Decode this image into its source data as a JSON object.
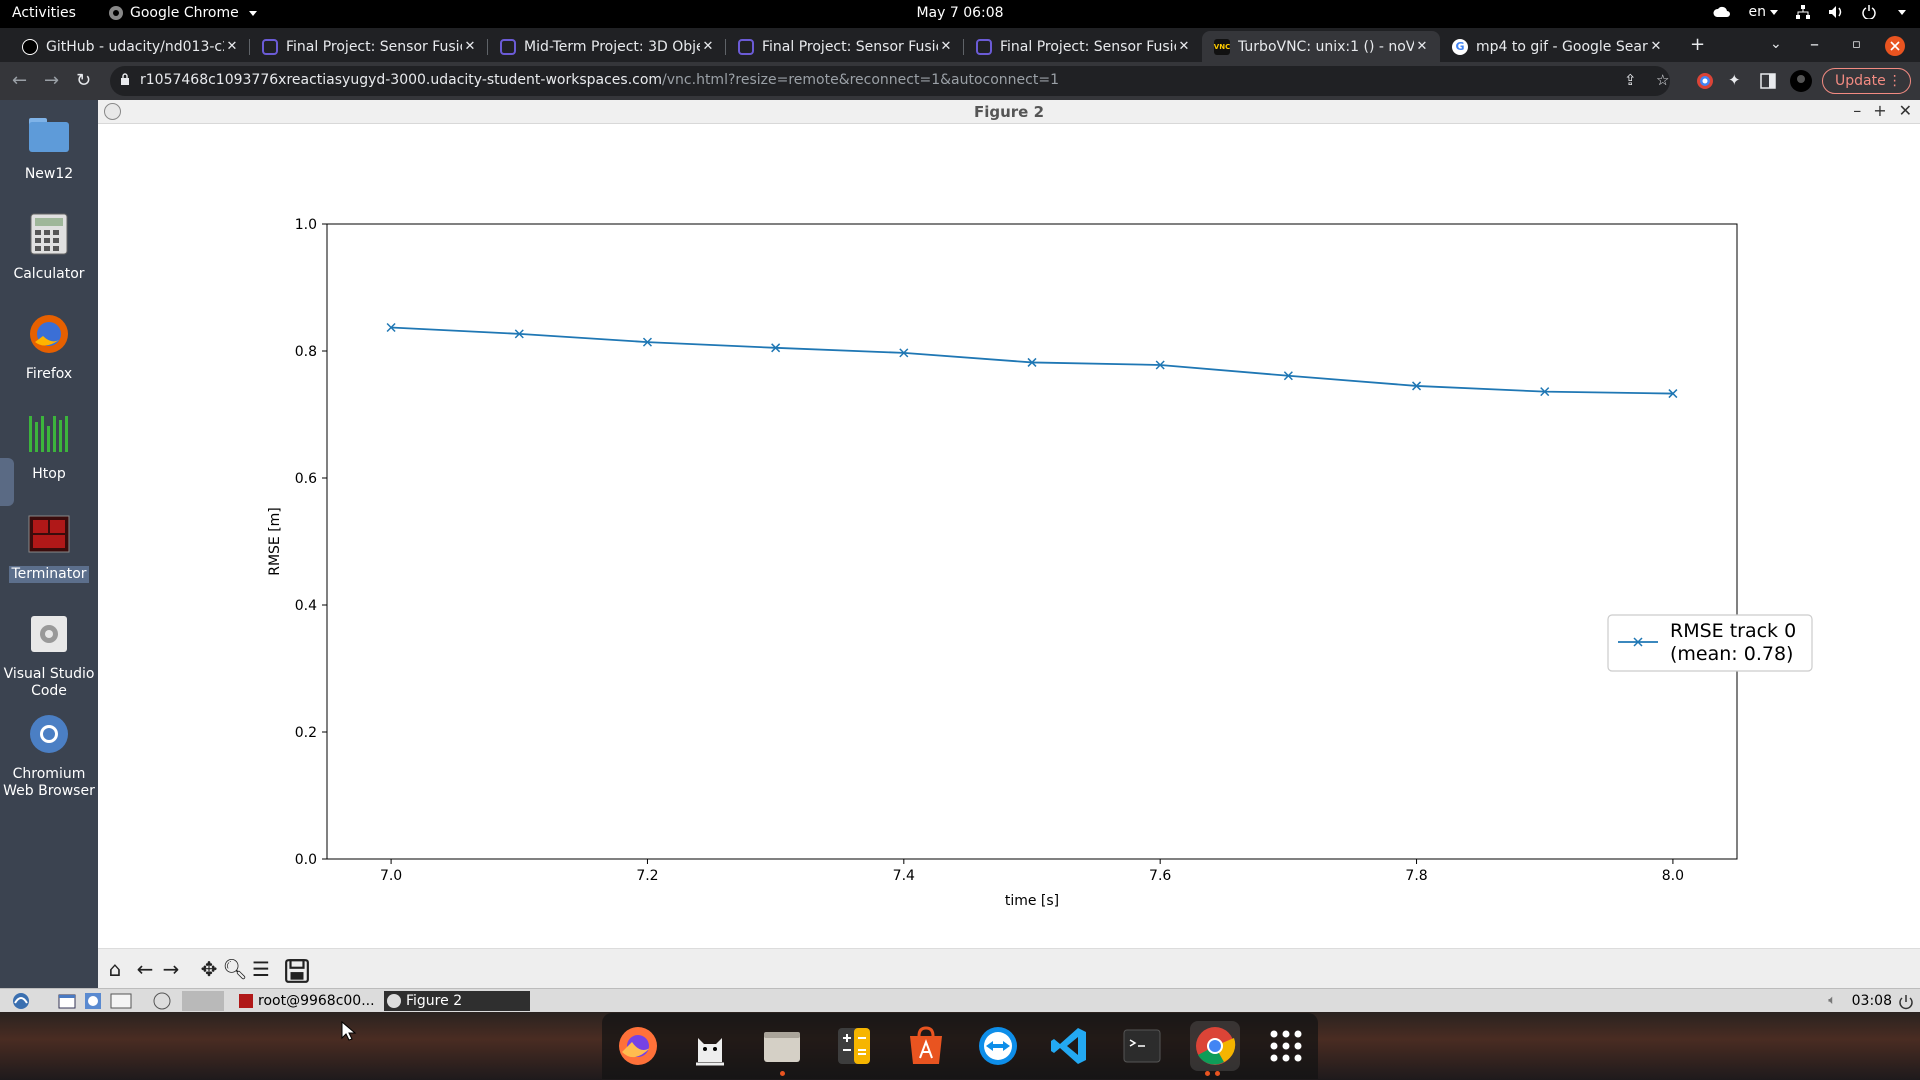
{
  "topbar": {
    "activities": "Activities",
    "app_name": "Google Chrome",
    "clock": "May 7  06:08",
    "language": "en"
  },
  "tabs": [
    {
      "title": "GitHub - udacity/nd013-c2",
      "icon": "github-icon"
    },
    {
      "title": "Final Project: Sensor Fusion",
      "icon": "udacity-icon"
    },
    {
      "title": "Mid-Term Project: 3D Obje",
      "icon": "udacity-icon"
    },
    {
      "title": "Final Project: Sensor Fusion",
      "icon": "udacity-icon"
    },
    {
      "title": "Final Project: Sensor Fusion",
      "icon": "udacity-icon"
    },
    {
      "title": "TurboVNC: unix:1 () - noVNC",
      "icon": "vnc-icon",
      "active": true
    },
    {
      "title": "mp4 to gif - Google Search",
      "icon": "google-icon"
    }
  ],
  "omnibox": {
    "url_host": "r1057468c1093776xreactiasyugyd-3000.udacity-student-workspaces.com",
    "url_path": "/vnc.html?resize=remote&reconnect=1&autoconnect=1",
    "update_label": "Update"
  },
  "desktop_icons": [
    {
      "label": "New12",
      "icon": "folder-icon"
    },
    {
      "label": "Calculator",
      "icon": "calculator-icon"
    },
    {
      "label": "Firefox",
      "icon": "firefox-icon"
    },
    {
      "label": "Htop",
      "icon": "htop-icon"
    },
    {
      "label": "Terminator",
      "icon": "terminator-icon",
      "selected": true
    },
    {
      "label": "Visual Studio Code",
      "icon": "vscode-icon"
    },
    {
      "label": "Chromium Web Browser",
      "icon": "chromium-icon"
    }
  ],
  "figure_window": {
    "title": "Figure 2"
  },
  "chart_data": {
    "type": "line",
    "x": [
      7.0,
      7.1,
      7.2,
      7.3,
      7.4,
      7.5,
      7.6,
      7.7,
      7.8,
      7.9,
      8.0
    ],
    "series": [
      {
        "name": "RMSE track 0\n(mean: 0.78)",
        "values": [
          0.837,
          0.827,
          0.814,
          0.805,
          0.797,
          0.782,
          0.778,
          0.761,
          0.745,
          0.736,
          0.733
        ],
        "color": "#1f77b4",
        "marker": "x"
      }
    ],
    "xlabel": "time [s]",
    "ylabel": "RMSE [m]",
    "xlim": [
      6.95,
      8.05
    ],
    "ylim": [
      0.0,
      1.0
    ],
    "xticks": [
      "7.0",
      "7.2",
      "7.4",
      "7.6",
      "7.8",
      "8.0"
    ],
    "yticks": [
      "0.0",
      "0.2",
      "0.4",
      "0.6",
      "0.8",
      "1.0"
    ],
    "legend_lines": [
      "RMSE track 0",
      "(mean: 0.78)"
    ],
    "legend_placement": "right",
    "grid": false
  },
  "lxpanel": {
    "task_terminal": "root@9968c00...",
    "task_figure": "Figure 2",
    "clock": "03:08"
  }
}
